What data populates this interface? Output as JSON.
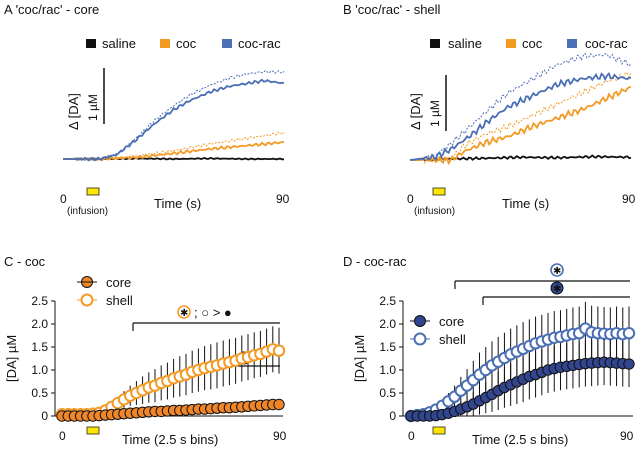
{
  "colors": {
    "saline": "#111111",
    "coc": "#f39a24",
    "coc_rac": "#4a6fb5",
    "coc_fill": "#f0862a",
    "rac_fill": "#31468f"
  },
  "chart_data": [
    {
      "id": "A",
      "type": "line",
      "title": "A  'coc/rac' - core",
      "legend": [
        "saline",
        "coc",
        "coc-rac"
      ],
      "scalebar": "1 µM",
      "ylabel": "Δ [DA]",
      "xlabel": "Time (s)",
      "xticks": [
        "0",
        "90"
      ],
      "infusion_label": "(infusion)",
      "xlim": [
        0,
        90
      ],
      "series": [
        {
          "name": "saline",
          "style": "solid",
          "x": [
            0,
            15,
            30,
            45,
            60,
            75,
            90
          ],
          "y": [
            0,
            0,
            0.01,
            0,
            0.01,
            0,
            0
          ]
        },
        {
          "name": "coc",
          "style": "solid",
          "x": [
            0,
            15,
            30,
            45,
            60,
            75,
            90
          ],
          "y": [
            0,
            0,
            0.03,
            0.1,
            0.18,
            0.24,
            0.3
          ]
        },
        {
          "name": "coc",
          "style": "dotted",
          "x": [
            0,
            15,
            30,
            45,
            60,
            75,
            90
          ],
          "y": [
            0,
            0,
            0.05,
            0.15,
            0.27,
            0.37,
            0.47
          ]
        },
        {
          "name": "coc-rac",
          "style": "solid",
          "x": [
            0,
            15,
            22,
            30,
            37,
            45,
            52,
            60,
            68,
            75,
            82,
            90
          ],
          "y": [
            0,
            0,
            0.08,
            0.35,
            0.62,
            0.88,
            1.05,
            1.2,
            1.3,
            1.35,
            1.4,
            1.35
          ]
        },
        {
          "name": "coc-rac",
          "style": "dotted",
          "x": [
            0,
            15,
            22,
            30,
            37,
            45,
            52,
            60,
            68,
            75,
            82,
            90
          ],
          "y": [
            0,
            0,
            0.09,
            0.38,
            0.68,
            0.95,
            1.15,
            1.32,
            1.45,
            1.52,
            1.56,
            1.55
          ]
        }
      ]
    },
    {
      "id": "B",
      "type": "line",
      "title": "B  'coc/rac' - shell",
      "legend": [
        "saline",
        "coc",
        "coc-rac"
      ],
      "scalebar": "1 µM",
      "ylabel": "Δ [DA]",
      "xlabel": "Time (s)",
      "xticks": [
        "0",
        "90"
      ],
      "infusion_label": "(infusion)",
      "xlim": [
        0,
        90
      ],
      "series": [
        {
          "name": "saline",
          "style": "solid",
          "x": [
            0,
            15,
            30,
            45,
            60,
            75,
            90
          ],
          "y": [
            0,
            0.02,
            0.03,
            0.05,
            0.04,
            0.06,
            0.05
          ]
        },
        {
          "name": "coc",
          "style": "solid",
          "x": [
            0,
            10,
            17,
            22,
            30,
            40,
            50,
            60,
            70,
            80,
            90
          ],
          "y": [
            0,
            0,
            0,
            0.15,
            0.3,
            0.42,
            0.6,
            0.75,
            0.9,
            1.1,
            1.3
          ]
        },
        {
          "name": "coc",
          "style": "dotted",
          "x": [
            0,
            10,
            17,
            22,
            30,
            40,
            50,
            60,
            70,
            80,
            90
          ],
          "y": [
            0,
            0,
            0.03,
            0.25,
            0.45,
            0.6,
            0.8,
            1.0,
            1.2,
            1.4,
            1.55
          ]
        },
        {
          "name": "coc-rac",
          "style": "solid",
          "x": [
            0,
            10,
            17,
            25,
            32,
            40,
            50,
            60,
            70,
            80,
            90
          ],
          "y": [
            0,
            0.05,
            0.2,
            0.45,
            0.7,
            0.95,
            1.15,
            1.35,
            1.45,
            1.5,
            1.45
          ]
        },
        {
          "name": "coc-rac",
          "style": "dotted",
          "x": [
            0,
            10,
            17,
            25,
            32,
            40,
            50,
            60,
            70,
            80,
            90
          ],
          "y": [
            0,
            0.07,
            0.3,
            0.62,
            0.9,
            1.2,
            1.45,
            1.7,
            1.85,
            1.88,
            1.7
          ]
        }
      ]
    },
    {
      "id": "C",
      "type": "scatter",
      "title": "C  -  coc",
      "legend": [
        "core",
        "shell"
      ],
      "ylabel": "[DA] µM",
      "xlabel": "Time (2.5 s bins)",
      "xticks": [
        "0",
        "90"
      ],
      "ylim": [
        0,
        2.5
      ],
      "yticks": [
        "0",
        "0.5",
        "1.0",
        "1.5",
        "2.0",
        "2.5"
      ],
      "annotation": "; ○ > ●",
      "bins": [
        1,
        2,
        3,
        4,
        5,
        6,
        7,
        8,
        9,
        10,
        11,
        12,
        13,
        14,
        15,
        16,
        17,
        18,
        19,
        20,
        21,
        22,
        23,
        24,
        25,
        26,
        27,
        28,
        29,
        30,
        31,
        32,
        33,
        34,
        35,
        36
      ],
      "series": [
        {
          "name": "core",
          "values": [
            0,
            0,
            0,
            0,
            0,
            0,
            0.01,
            0.02,
            0.03,
            0.04,
            0.05,
            0.06,
            0.07,
            0.08,
            0.09,
            0.1,
            0.1,
            0.11,
            0.12,
            0.12,
            0.13,
            0.14,
            0.15,
            0.15,
            0.16,
            0.17,
            0.18,
            0.18,
            0.19,
            0.2,
            0.21,
            0.22,
            0.23,
            0.24,
            0.25,
            0.25
          ],
          "err": [
            0,
            0,
            0,
            0,
            0,
            0,
            0.02,
            0.02,
            0.03,
            0.03,
            0.03,
            0.04,
            0.04,
            0.04,
            0.05,
            0.05,
            0.05,
            0.05,
            0.06,
            0.06,
            0.06,
            0.06,
            0.06,
            0.07,
            0.07,
            0.07,
            0.07,
            0.08,
            0.08,
            0.08,
            0.08,
            0.09,
            0.09,
            0.09,
            0.09,
            0.1
          ]
        },
        {
          "name": "shell",
          "values": [
            0.04,
            0.04,
            0.04,
            0.04,
            0.04,
            0.05,
            0.07,
            0.12,
            0.2,
            0.28,
            0.36,
            0.44,
            0.5,
            0.56,
            0.62,
            0.66,
            0.72,
            0.76,
            0.82,
            0.86,
            0.9,
            0.96,
            1.0,
            1.04,
            1.07,
            1.1,
            1.14,
            1.17,
            1.2,
            1.25,
            1.28,
            1.32,
            1.35,
            1.4,
            1.45,
            1.42
          ],
          "err": [
            0,
            0,
            0,
            0,
            0,
            0,
            0.02,
            0.05,
            0.1,
            0.14,
            0.18,
            0.22,
            0.26,
            0.3,
            0.33,
            0.36,
            0.38,
            0.4,
            0.42,
            0.44,
            0.45,
            0.46,
            0.47,
            0.48,
            0.49,
            0.5,
            0.5,
            0.5,
            0.5,
            0.5,
            0.5,
            0.5,
            0.5,
            0.5,
            0.5,
            0.5
          ]
        }
      ]
    },
    {
      "id": "D",
      "type": "scatter",
      "title": "D  -  coc-rac",
      "legend": [
        "core",
        "shell"
      ],
      "ylabel": "[DA] µM",
      "xlabel": "Time (2.5 s bins)",
      "xticks": [
        "0",
        "90"
      ],
      "ylim": [
        0,
        2.5
      ],
      "yticks": [
        "0",
        "0.5",
        "1.0",
        "1.5",
        "2.0",
        "2.5"
      ],
      "bins": [
        1,
        2,
        3,
        4,
        5,
        6,
        7,
        8,
        9,
        10,
        11,
        12,
        13,
        14,
        15,
        16,
        17,
        18,
        19,
        20,
        21,
        22,
        23,
        24,
        25,
        26,
        27,
        28,
        29,
        30,
        31,
        32,
        33,
        34,
        35,
        36
      ],
      "series": [
        {
          "name": "core",
          "values": [
            0,
            0,
            0,
            0,
            0.01,
            0.03,
            0.06,
            0.1,
            0.15,
            0.2,
            0.26,
            0.33,
            0.4,
            0.47,
            0.55,
            0.62,
            0.68,
            0.74,
            0.8,
            0.86,
            0.9,
            0.95,
            1.0,
            1.03,
            1.06,
            1.08,
            1.1,
            1.12,
            1.14,
            1.15,
            1.16,
            1.17,
            1.16,
            1.15,
            1.14,
            1.13
          ],
          "err": [
            0,
            0,
            0,
            0.02,
            0.03,
            0.06,
            0.1,
            0.14,
            0.18,
            0.22,
            0.26,
            0.3,
            0.34,
            0.38,
            0.42,
            0.44,
            0.46,
            0.48,
            0.5,
            0.5,
            0.5,
            0.5,
            0.5,
            0.5,
            0.5,
            0.5,
            0.5,
            0.5,
            0.5,
            0.5,
            0.5,
            0.5,
            0.5,
            0.5,
            0.5,
            0.5
          ]
        },
        {
          "name": "shell",
          "values": [
            0,
            0.02,
            0.04,
            0.08,
            0.14,
            0.22,
            0.32,
            0.42,
            0.55,
            0.66,
            0.78,
            0.9,
            1.0,
            1.1,
            1.18,
            1.26,
            1.34,
            1.4,
            1.46,
            1.52,
            1.58,
            1.62,
            1.66,
            1.7,
            1.72,
            1.75,
            1.78,
            1.8,
            1.9,
            1.82,
            1.8,
            1.79,
            1.78,
            1.8,
            1.78,
            1.8
          ],
          "err": [
            0,
            0.02,
            0.04,
            0.06,
            0.1,
            0.14,
            0.18,
            0.24,
            0.3,
            0.36,
            0.42,
            0.48,
            0.5,
            0.52,
            0.54,
            0.55,
            0.56,
            0.57,
            0.58,
            0.58,
            0.58,
            0.58,
            0.58,
            0.58,
            0.58,
            0.58,
            0.58,
            0.58,
            0.58,
            0.58,
            0.58,
            0.58,
            0.58,
            0.58,
            0.58,
            0.58
          ]
        }
      ]
    }
  ]
}
